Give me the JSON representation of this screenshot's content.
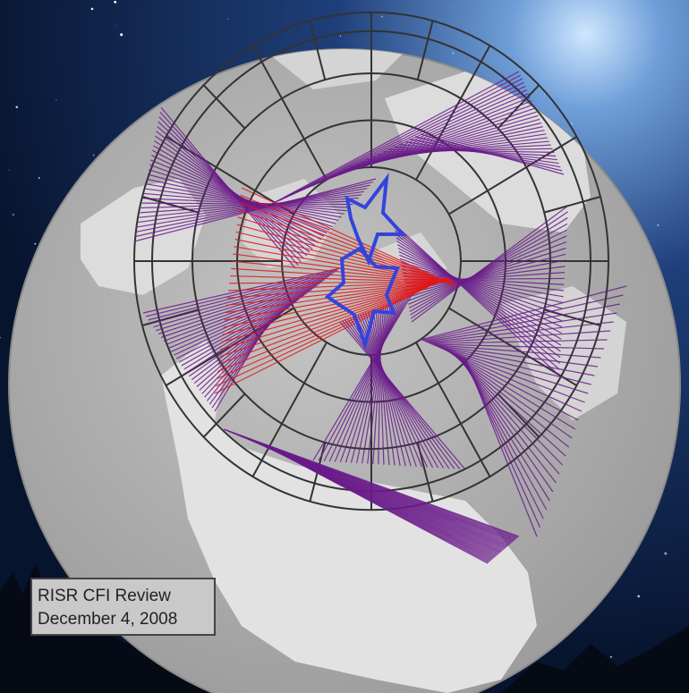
{
  "caption": {
    "line1": "RISR CFI Review",
    "line2": "December 4, 2008"
  }
}
